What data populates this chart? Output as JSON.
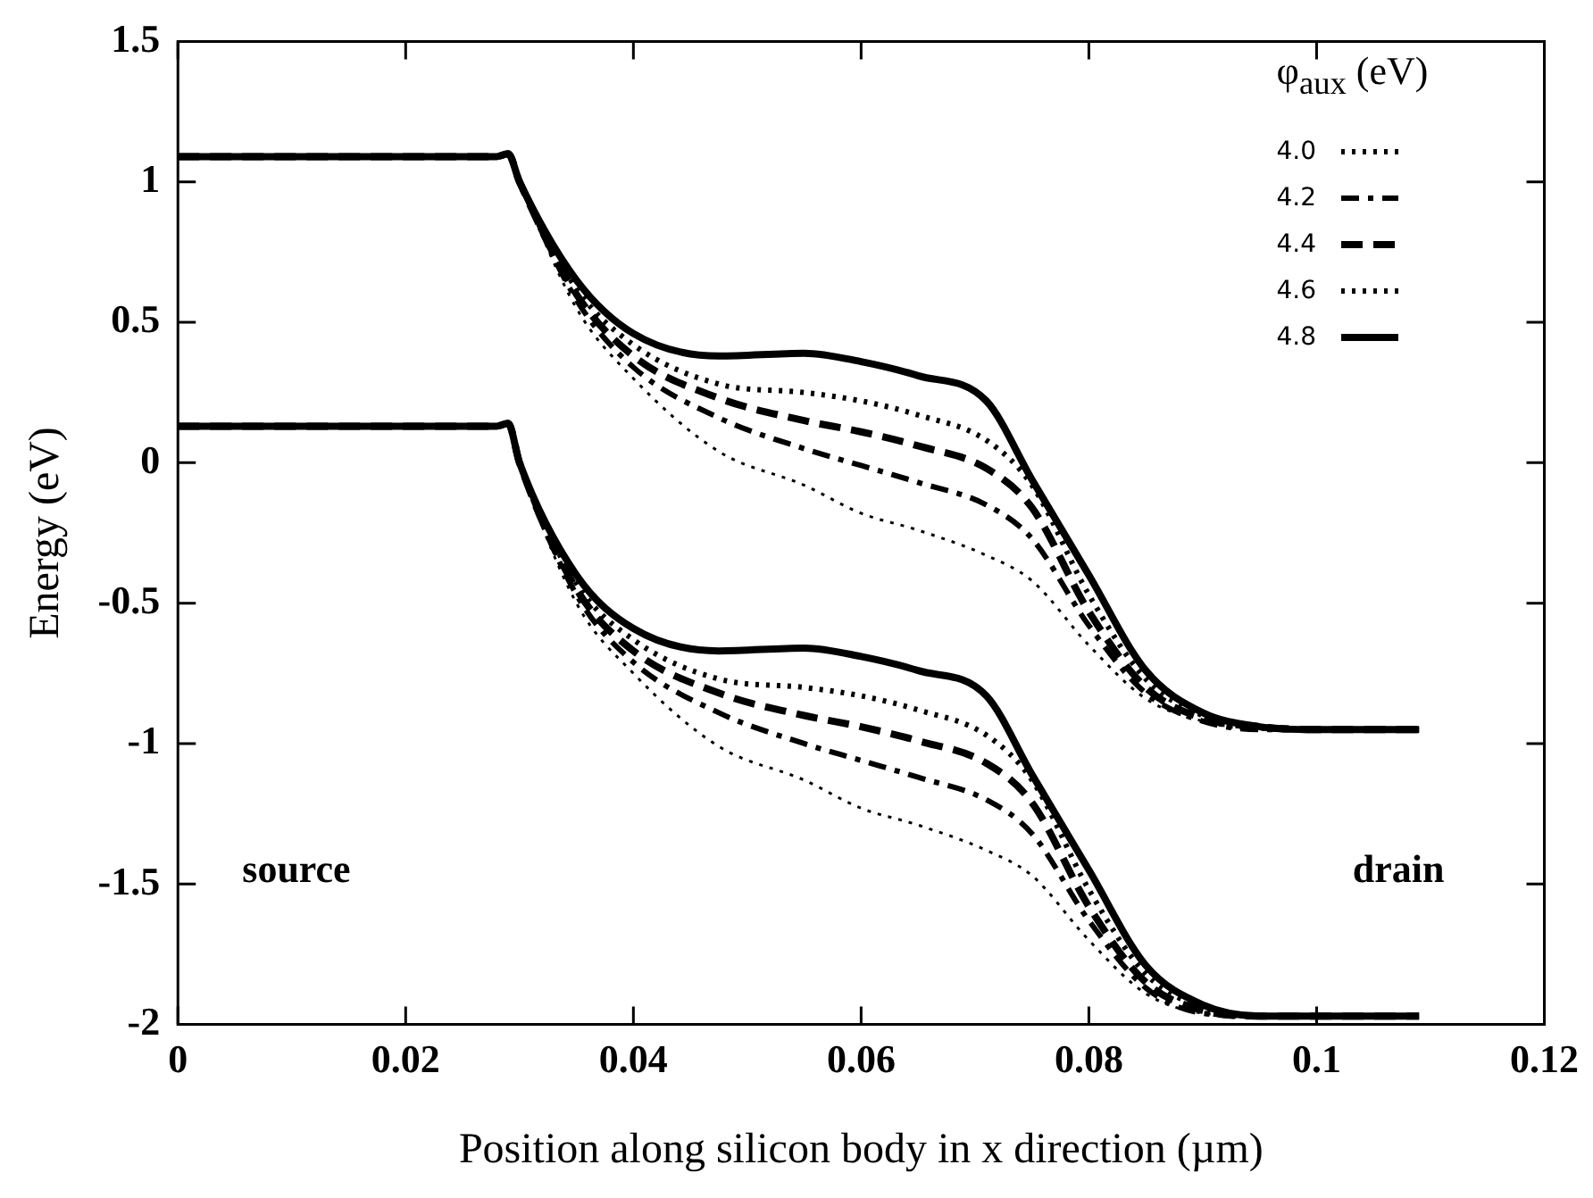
{
  "chart_data": {
    "type": "line",
    "xlabel": "Position along silicon body in x direction (µm)",
    "ylabel": "Energy (eV)",
    "legend_title": "φ$_{aux}$ (eV)",
    "legend": "top right",
    "grid": false,
    "marker": "none",
    "x": [
      0,
      0.028,
      0.029,
      0.03,
      0.035,
      0.04,
      0.0475,
      0.055,
      0.06,
      0.065,
      0.071,
      0.075,
      0.08,
      0.085,
      0.09,
      0.095,
      0.1,
      0.109
    ],
    "xlim": [
      0,
      0.12
    ],
    "xticks": [
      0,
      0.02,
      0.04,
      0.06,
      0.08,
      0.1,
      0.12
    ],
    "ylim": [
      -2,
      1.5
    ],
    "yticks": [
      -2,
      -1.5,
      -1,
      -0.5,
      0,
      0.5,
      1,
      1.5
    ],
    "series": [
      {
        "name": "4.0",
        "color": "#000000",
        "line_style": "dotted",
        "values": [
          1.09,
          1.09,
          1.1,
          1.0,
          0.55,
          0.3,
          0.04,
          -0.08,
          -0.18,
          -0.24,
          -0.33,
          -0.42,
          -0.65,
          -0.84,
          -0.92,
          -0.95,
          -0.95,
          -0.95
        ]
      },
      {
        "name": "4.2",
        "color": "#000000",
        "line_style": "dashdot",
        "values": [
          1.09,
          1.09,
          1.1,
          1.0,
          0.58,
          0.34,
          0.16,
          0.05,
          -0.01,
          -0.07,
          -0.15,
          -0.27,
          -0.58,
          -0.82,
          -0.92,
          -0.95,
          -0.95,
          -0.95
        ]
      },
      {
        "name": "4.4",
        "color": "#000000",
        "line_style": "dashed",
        "values": [
          1.09,
          1.09,
          1.1,
          1.0,
          0.6,
          0.38,
          0.23,
          0.15,
          0.11,
          0.06,
          -0.02,
          -0.16,
          -0.53,
          -0.8,
          -0.91,
          -0.94,
          -0.95,
          -0.95
        ]
      },
      {
        "name": "4.6",
        "color": "#000000",
        "line_style": "dotted",
        "values": [
          1.09,
          1.09,
          1.1,
          1.0,
          0.62,
          0.42,
          0.28,
          0.25,
          0.22,
          0.17,
          0.08,
          -0.08,
          -0.47,
          -0.77,
          -0.9,
          -0.94,
          -0.95,
          -0.95
        ]
      },
      {
        "name": "4.8",
        "color": "#000000",
        "line_style": "solid",
        "values": [
          1.09,
          1.09,
          1.1,
          1.0,
          0.65,
          0.46,
          0.38,
          0.39,
          0.36,
          0.31,
          0.22,
          -0.06,
          -0.4,
          -0.74,
          -0.89,
          -0.94,
          -0.95,
          -0.95
        ]
      },
      {
        "color": "#000000",
        "line_style": "dotted",
        "values": [
          0.13,
          0.13,
          0.14,
          0.0,
          -0.5,
          -0.75,
          -1.01,
          -1.13,
          -1.23,
          -1.29,
          -1.38,
          -1.47,
          -1.7,
          -1.89,
          -1.96,
          -1.97,
          -1.97,
          -1.97
        ]
      },
      {
        "color": "#000000",
        "line_style": "dashdot",
        "values": [
          0.13,
          0.13,
          0.14,
          0.0,
          -0.47,
          -0.71,
          -0.89,
          -1.0,
          -1.06,
          -1.12,
          -1.2,
          -1.32,
          -1.63,
          -1.87,
          -1.96,
          -1.97,
          -1.97,
          -1.97
        ]
      },
      {
        "color": "#000000",
        "line_style": "dashed",
        "values": [
          0.13,
          0.13,
          0.14,
          0.0,
          -0.45,
          -0.67,
          -0.82,
          -0.9,
          -0.94,
          -0.99,
          -1.07,
          -1.21,
          -1.58,
          -1.85,
          -1.95,
          -1.97,
          -1.97,
          -1.97
        ]
      },
      {
        "color": "#000000",
        "line_style": "dotted",
        "values": [
          0.13,
          0.13,
          0.14,
          0.0,
          -0.43,
          -0.63,
          -0.77,
          -0.8,
          -0.83,
          -0.88,
          -0.97,
          -1.13,
          -1.52,
          -1.82,
          -1.94,
          -1.97,
          -1.97,
          -1.97
        ]
      },
      {
        "color": "#000000",
        "line_style": "solid",
        "values": [
          0.13,
          0.13,
          0.14,
          0.0,
          -0.4,
          -0.59,
          -0.67,
          -0.66,
          -0.69,
          -0.74,
          -0.83,
          -1.11,
          -1.45,
          -1.79,
          -1.93,
          -1.97,
          -1.97,
          -1.97
        ]
      }
    ],
    "annotations": [
      "source",
      "drain"
    ]
  }
}
